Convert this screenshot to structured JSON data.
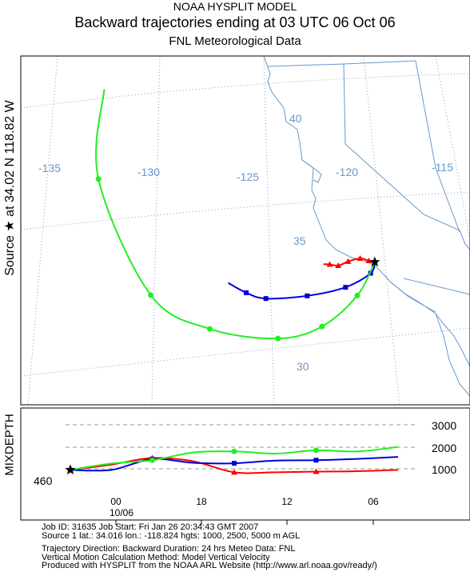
{
  "header": {
    "line1": "NOAA HYSPLIT MODEL",
    "line2": "Backward trajectories ending at 03 UTC 06 Oct 06",
    "line3": "FNL  Meteorological Data"
  },
  "side_label": "Source ★ at   34.02 N  118.82 W",
  "mixdepth_label": "MIXDEPTH",
  "colors": {
    "red": "#ff0000",
    "blue": "#0000dd",
    "green": "#22ee22",
    "land": "#6699cc",
    "grid": "#7aa3cc"
  },
  "chart_data": [
    {
      "type": "map",
      "longitude_labels": [
        "-135",
        "-130",
        "-125",
        "-120",
        "-115"
      ],
      "latitude_labels": [
        "40",
        "35",
        "30"
      ],
      "source": {
        "lat": 34.016,
        "lon": -118.824,
        "marker": "star"
      },
      "series": [
        {
          "name": "1000 m AGL",
          "color": "red",
          "marker": "triangle",
          "lat": [
            34.02,
            34.1,
            34.25,
            34.2,
            34.1,
            34.2,
            34.25
          ],
          "lon": [
            -118.82,
            -119.1,
            -119.5,
            -120.1,
            -120.6,
            -121.0,
            -121.3
          ]
        },
        {
          "name": "2500 m AGL",
          "color": "blue",
          "marker": "square",
          "lat": [
            34.02,
            33.6,
            33.2,
            33.1,
            33.25,
            33.6,
            34.1
          ],
          "lon": [
            -118.82,
            -119.1,
            -120.4,
            -122.3,
            -124.3,
            -125.2,
            -126.0
          ]
        },
        {
          "name": "5000 m AGL",
          "color": "green",
          "marker": "circle",
          "lat": [
            34.02,
            32.8,
            31.8,
            31.6,
            32.4,
            34.1,
            39.0,
            42.5
          ],
          "lon": [
            -118.82,
            -119.9,
            -121.8,
            -124.0,
            -127.2,
            -129.8,
            -131.5,
            -130.6
          ]
        }
      ]
    },
    {
      "type": "line",
      "xlabel": "",
      "ylabel": "MIXDEPTH",
      "x_tick_labels": [
        "00",
        "18",
        "12",
        "06"
      ],
      "x_date_label": "10/06",
      "y_ticks": [
        "3000",
        "2000",
        "1000"
      ],
      "ylim": [
        0,
        3500
      ],
      "mixdepth_value": "460",
      "x_hours_before_end": [
        24,
        21,
        18,
        15,
        12,
        9,
        6,
        3,
        0
      ],
      "series": [
        {
          "name": "1000 m AGL",
          "color": "red",
          "marker": "triangle",
          "values": [
            460,
            700,
            1000,
            850,
            350,
            350,
            380,
            400,
            460
          ]
        },
        {
          "name": "2500 m AGL",
          "color": "blue",
          "marker": "square",
          "values": [
            460,
            460,
            950,
            780,
            760,
            880,
            900,
            960,
            1050
          ]
        },
        {
          "name": "5000 m AGL",
          "color": "green",
          "marker": "circle",
          "values": [
            460,
            750,
            900,
            1250,
            1300,
            1200,
            1350,
            1300,
            1500
          ]
        }
      ]
    }
  ],
  "info": {
    "job": "Job ID: 31635         Job Start: Fri Jan 26 20:34:43 GMT 2007",
    "source": "Source 1 lat.: 34.016  lon.: -118.824  hgts: 1000, 2500, 5000 m AGL",
    "direction": "Trajectory Direction: Backward    Duration: 24 hrs    Meteo Data: FNL",
    "vertical": "Vertical Motion Calculation Method: Model Vertical Velocity",
    "produced": "Produced with HYSPLIT from the NOAA ARL Website (http://www.arl.noaa.gov/ready/)"
  }
}
